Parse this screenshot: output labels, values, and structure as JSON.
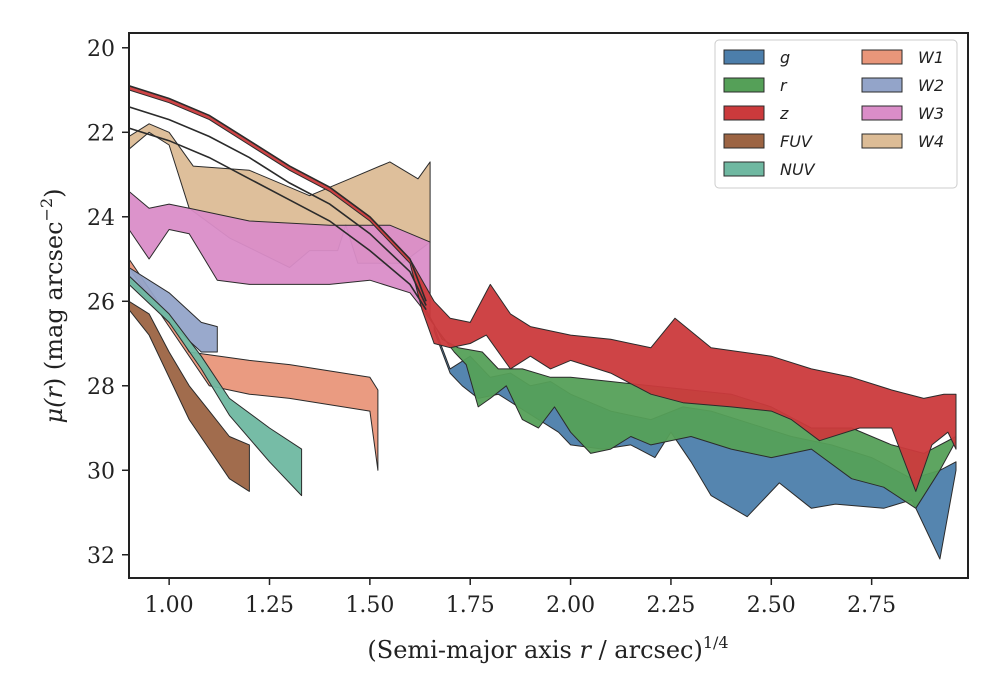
{
  "chart_data": {
    "type": "area",
    "title": "",
    "xlabel_prefix": "(Semi-major axis ",
    "xlabel_var": "r",
    "xlabel_mid": " / arcsec)",
    "xlabel_sup": "1/4",
    "ylabel_prefix": "μ(",
    "ylabel_var": "r",
    "ylabel_mid": ") (mag arcsec",
    "ylabel_sup": "−2",
    "ylabel_suffix": ")",
    "xlim": [
      0.9,
      2.99
    ],
    "ylim": [
      32.55,
      19.65
    ],
    "y_inverted": true,
    "x_ticks": [
      1.0,
      1.25,
      1.5,
      1.75,
      2.0,
      2.25,
      2.5,
      2.75
    ],
    "x_tick_labels": [
      "1.00",
      "1.25",
      "1.50",
      "1.75",
      "2.00",
      "2.25",
      "2.50",
      "2.75"
    ],
    "y_ticks": [
      20,
      22,
      24,
      26,
      28,
      30,
      32
    ],
    "y_tick_labels": [
      "20",
      "22",
      "24",
      "26",
      "28",
      "30",
      "32"
    ],
    "legend_position": "top-right",
    "series": [
      {
        "name": "g",
        "color": "#4c7eab",
        "upper": [
          [
            1.66,
            26.6
          ],
          [
            1.7,
            27.6
          ],
          [
            1.75,
            27.3
          ],
          [
            1.8,
            27.8
          ],
          [
            1.85,
            27.7
          ],
          [
            1.9,
            28.0
          ],
          [
            1.95,
            27.9
          ],
          [
            2.0,
            28.2
          ],
          [
            2.1,
            28.6
          ],
          [
            2.2,
            28.8
          ],
          [
            2.28,
            28.5
          ],
          [
            2.35,
            28.6
          ],
          [
            2.45,
            28.9
          ],
          [
            2.55,
            29.2
          ],
          [
            2.65,
            29.4
          ],
          [
            2.75,
            29.7
          ],
          [
            2.85,
            30.2
          ],
          [
            2.92,
            30.0
          ],
          [
            2.96,
            29.8
          ]
        ],
        "lower": [
          [
            1.66,
            26.7
          ],
          [
            1.7,
            27.7
          ],
          [
            1.73,
            28.0
          ],
          [
            1.77,
            28.3
          ],
          [
            1.82,
            28.2
          ],
          [
            1.87,
            28.5
          ],
          [
            1.92,
            28.8
          ],
          [
            1.97,
            29.1
          ],
          [
            2.0,
            29.4
          ],
          [
            2.08,
            29.5
          ],
          [
            2.15,
            29.4
          ],
          [
            2.21,
            29.7
          ],
          [
            2.25,
            29.1
          ],
          [
            2.3,
            29.8
          ],
          [
            2.35,
            30.6
          ],
          [
            2.44,
            31.1
          ],
          [
            2.52,
            30.3
          ],
          [
            2.6,
            30.9
          ],
          [
            2.66,
            30.8
          ],
          [
            2.78,
            30.9
          ],
          [
            2.85,
            30.7
          ],
          [
            2.92,
            32.1
          ],
          [
            2.96,
            30.0
          ]
        ]
      },
      {
        "name": "r",
        "color": "#55a058",
        "upper": [
          [
            1.64,
            26.2
          ],
          [
            1.68,
            26.9
          ],
          [
            1.72,
            27.1
          ],
          [
            1.78,
            27.2
          ],
          [
            1.82,
            27.6
          ],
          [
            1.88,
            27.6
          ],
          [
            1.95,
            27.8
          ],
          [
            2.0,
            27.8
          ],
          [
            2.1,
            27.9
          ],
          [
            2.2,
            28.0
          ],
          [
            2.3,
            28.1
          ],
          [
            2.4,
            28.2
          ],
          [
            2.5,
            28.5
          ],
          [
            2.6,
            29.0
          ],
          [
            2.7,
            29.0
          ],
          [
            2.8,
            29.4
          ],
          [
            2.88,
            29.6
          ],
          [
            2.96,
            29.2
          ]
        ],
        "lower": [
          [
            1.64,
            26.3
          ],
          [
            1.67,
            26.7
          ],
          [
            1.71,
            27.2
          ],
          [
            1.74,
            27.5
          ],
          [
            1.77,
            28.5
          ],
          [
            1.8,
            28.3
          ],
          [
            1.84,
            28.0
          ],
          [
            1.88,
            28.8
          ],
          [
            1.92,
            29.0
          ],
          [
            1.96,
            28.5
          ],
          [
            2.0,
            29.1
          ],
          [
            2.05,
            29.6
          ],
          [
            2.1,
            29.5
          ],
          [
            2.15,
            29.2
          ],
          [
            2.2,
            29.4
          ],
          [
            2.3,
            29.2
          ],
          [
            2.4,
            29.5
          ],
          [
            2.5,
            29.7
          ],
          [
            2.6,
            29.5
          ],
          [
            2.7,
            30.2
          ],
          [
            2.78,
            30.4
          ],
          [
            2.86,
            30.9
          ],
          [
            2.92,
            30.0
          ],
          [
            2.96,
            29.3
          ]
        ]
      },
      {
        "name": "z",
        "color": "#cb3a3c",
        "upper": [
          [
            0.9,
            20.9
          ],
          [
            1.0,
            21.2
          ],
          [
            1.1,
            21.6
          ],
          [
            1.2,
            22.2
          ],
          [
            1.3,
            22.8
          ],
          [
            1.4,
            23.3
          ],
          [
            1.5,
            24.0
          ],
          [
            1.6,
            25.0
          ],
          [
            1.66,
            26.0
          ],
          [
            1.7,
            26.4
          ],
          [
            1.75,
            26.5
          ],
          [
            1.8,
            25.6
          ],
          [
            1.85,
            26.3
          ],
          [
            1.9,
            26.6
          ],
          [
            2.0,
            26.8
          ],
          [
            2.1,
            26.9
          ],
          [
            2.2,
            27.1
          ],
          [
            2.26,
            26.4
          ],
          [
            2.35,
            27.1
          ],
          [
            2.5,
            27.3
          ],
          [
            2.6,
            27.6
          ],
          [
            2.7,
            27.8
          ],
          [
            2.8,
            28.1
          ],
          [
            2.88,
            28.3
          ],
          [
            2.93,
            28.2
          ],
          [
            2.96,
            28.2
          ]
        ],
        "lower": [
          [
            0.9,
            21.0
          ],
          [
            1.0,
            21.3
          ],
          [
            1.1,
            21.7
          ],
          [
            1.2,
            22.3
          ],
          [
            1.3,
            22.9
          ],
          [
            1.4,
            23.4
          ],
          [
            1.5,
            24.1
          ],
          [
            1.6,
            25.1
          ],
          [
            1.63,
            26.2
          ],
          [
            1.66,
            27.0
          ],
          [
            1.7,
            27.1
          ],
          [
            1.75,
            27.0
          ],
          [
            1.79,
            26.8
          ],
          [
            1.85,
            27.6
          ],
          [
            1.9,
            27.3
          ],
          [
            1.95,
            27.6
          ],
          [
            2.0,
            27.4
          ],
          [
            2.1,
            27.7
          ],
          [
            2.2,
            28.2
          ],
          [
            2.28,
            28.4
          ],
          [
            2.4,
            28.5
          ],
          [
            2.5,
            28.6
          ],
          [
            2.55,
            28.8
          ],
          [
            2.62,
            29.3
          ],
          [
            2.72,
            29.0
          ],
          [
            2.8,
            29.0
          ],
          [
            2.86,
            30.5
          ],
          [
            2.9,
            29.4
          ],
          [
            2.94,
            29.1
          ],
          [
            2.96,
            29.5
          ]
        ]
      },
      {
        "name": "FUV",
        "color": "#9c6443",
        "upper": [
          [
            0.9,
            26.0
          ],
          [
            0.95,
            26.3
          ],
          [
            1.0,
            27.2
          ],
          [
            1.05,
            28.0
          ],
          [
            1.1,
            28.6
          ],
          [
            1.15,
            29.2
          ],
          [
            1.2,
            29.4
          ]
        ],
        "lower": [
          [
            0.9,
            26.2
          ],
          [
            0.95,
            26.8
          ],
          [
            1.0,
            27.8
          ],
          [
            1.05,
            28.8
          ],
          [
            1.1,
            29.5
          ],
          [
            1.15,
            30.2
          ],
          [
            1.2,
            30.5
          ]
        ]
      },
      {
        "name": "NUV",
        "color": "#6fb8a1",
        "upper": [
          [
            0.9,
            25.4
          ],
          [
            1.0,
            26.3
          ],
          [
            1.08,
            27.3
          ],
          [
            1.15,
            28.3
          ],
          [
            1.25,
            29.0
          ],
          [
            1.33,
            29.5
          ]
        ],
        "lower": [
          [
            0.9,
            25.6
          ],
          [
            1.0,
            26.5
          ],
          [
            1.08,
            27.6
          ],
          [
            1.15,
            28.7
          ],
          [
            1.25,
            29.8
          ],
          [
            1.33,
            30.6
          ]
        ]
      },
      {
        "name": "W1",
        "color": "#e9967a",
        "upper": [
          [
            0.9,
            25.0
          ],
          [
            1.0,
            26.4
          ],
          [
            1.05,
            27.2
          ],
          [
            1.2,
            27.4
          ],
          [
            1.3,
            27.5
          ],
          [
            1.5,
            27.8
          ],
          [
            1.52,
            28.1
          ]
        ],
        "lower": [
          [
            0.9,
            25.2
          ],
          [
            1.0,
            26.6
          ],
          [
            1.1,
            28.0
          ],
          [
            1.2,
            28.2
          ],
          [
            1.3,
            28.3
          ],
          [
            1.5,
            28.6
          ],
          [
            1.52,
            30.0
          ]
        ]
      },
      {
        "name": "W2",
        "color": "#93a4c9",
        "upper": [
          [
            0.9,
            25.2
          ],
          [
            1.0,
            25.8
          ],
          [
            1.08,
            26.5
          ],
          [
            1.12,
            26.6
          ]
        ],
        "lower": [
          [
            0.9,
            25.5
          ],
          [
            1.0,
            26.5
          ],
          [
            1.08,
            27.2
          ],
          [
            1.12,
            27.2
          ]
        ]
      },
      {
        "name": "W3",
        "color": "#da8dc8",
        "upper": [
          [
            0.9,
            23.4
          ],
          [
            0.95,
            23.8
          ],
          [
            1.0,
            23.7
          ],
          [
            1.05,
            23.8
          ],
          [
            1.2,
            24.1
          ],
          [
            1.4,
            24.2
          ],
          [
            1.55,
            24.2
          ],
          [
            1.65,
            24.6
          ]
        ],
        "lower": [
          [
            0.9,
            24.3
          ],
          [
            0.95,
            25.0
          ],
          [
            1.0,
            24.3
          ],
          [
            1.05,
            24.4
          ],
          [
            1.12,
            25.5
          ],
          [
            1.2,
            25.6
          ],
          [
            1.4,
            25.6
          ],
          [
            1.5,
            25.5
          ],
          [
            1.6,
            25.8
          ],
          [
            1.65,
            26.4
          ]
        ]
      },
      {
        "name": "W4",
        "color": "#dcbc96",
        "upper": [
          [
            0.9,
            22.1
          ],
          [
            0.95,
            21.8
          ],
          [
            1.0,
            22.0
          ],
          [
            1.06,
            22.8
          ],
          [
            1.2,
            22.9
          ],
          [
            1.35,
            23.5
          ],
          [
            1.45,
            23.1
          ],
          [
            1.55,
            22.7
          ],
          [
            1.62,
            23.1
          ],
          [
            1.65,
            22.7
          ]
        ],
        "lower": [
          [
            0.9,
            22.4
          ],
          [
            0.95,
            22.0
          ],
          [
            1.0,
            22.3
          ],
          [
            1.05,
            23.8
          ],
          [
            1.15,
            24.5
          ],
          [
            1.3,
            25.2
          ],
          [
            1.35,
            24.8
          ],
          [
            1.42,
            24.8
          ],
          [
            1.44,
            24.2
          ],
          [
            1.47,
            25.1
          ],
          [
            1.58,
            25.1
          ],
          [
            1.65,
            24.6
          ]
        ]
      }
    ],
    "profile_lines": [
      {
        "points": [
          [
            0.9,
            20.9
          ],
          [
            1.0,
            21.2
          ],
          [
            1.1,
            21.6
          ],
          [
            1.2,
            22.2
          ],
          [
            1.3,
            22.8
          ],
          [
            1.4,
            23.3
          ],
          [
            1.5,
            24.0
          ],
          [
            1.6,
            25.0
          ],
          [
            1.64,
            26.0
          ]
        ]
      },
      {
        "points": [
          [
            0.9,
            21.4
          ],
          [
            1.0,
            21.7
          ],
          [
            1.1,
            22.1
          ],
          [
            1.2,
            22.6
          ],
          [
            1.3,
            23.2
          ],
          [
            1.4,
            23.7
          ],
          [
            1.5,
            24.4
          ],
          [
            1.6,
            25.3
          ],
          [
            1.64,
            26.1
          ]
        ]
      },
      {
        "points": [
          [
            0.9,
            21.9
          ],
          [
            1.0,
            22.2
          ],
          [
            1.1,
            22.6
          ],
          [
            1.2,
            23.1
          ],
          [
            1.3,
            23.6
          ],
          [
            1.4,
            24.1
          ],
          [
            1.5,
            24.8
          ],
          [
            1.6,
            25.6
          ],
          [
            1.64,
            26.2
          ]
        ]
      }
    ],
    "legend_items": [
      {
        "label": "g",
        "color": "#4c7eab",
        "col": 0,
        "row": 0
      },
      {
        "label": "r",
        "color": "#55a058",
        "col": 0,
        "row": 1
      },
      {
        "label": "z",
        "color": "#cb3a3c",
        "col": 0,
        "row": 2
      },
      {
        "label": "FUV",
        "color": "#9c6443",
        "col": 0,
        "row": 3
      },
      {
        "label": "NUV",
        "color": "#6fb8a1",
        "col": 0,
        "row": 4
      },
      {
        "label": "W1",
        "color": "#e9967a",
        "col": 1,
        "row": 0
      },
      {
        "label": "W2",
        "color": "#93a4c9",
        "col": 1,
        "row": 1
      },
      {
        "label": "W3",
        "color": "#da8dc8",
        "col": 1,
        "row": 2
      },
      {
        "label": "W4",
        "color": "#dcbc96",
        "col": 1,
        "row": 3
      }
    ]
  }
}
